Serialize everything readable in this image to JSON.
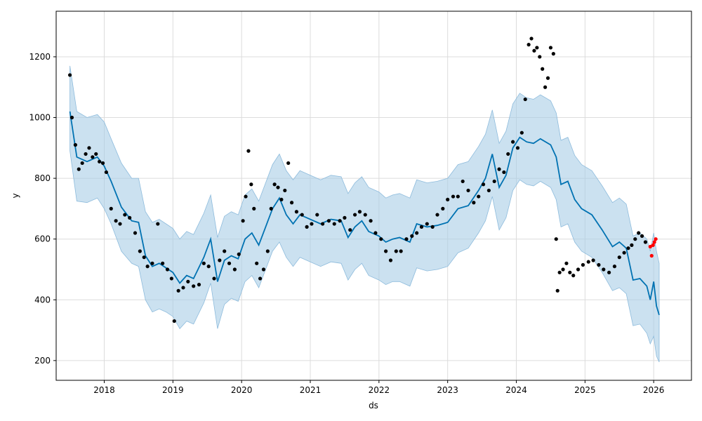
{
  "chart_data": {
    "type": "line",
    "xlabel": "ds",
    "ylabel": "y",
    "xlim": [
      2017.3,
      2026.55
    ],
    "ylim": [
      135,
      1350
    ],
    "x_ticks": [
      2018,
      2019,
      2020,
      2021,
      2022,
      2023,
      2024,
      2025,
      2026
    ],
    "x_tick_labels": [
      "2018",
      "2019",
      "2020",
      "2021",
      "2022",
      "2023",
      "2024",
      "2025",
      "2026"
    ],
    "y_ticks": [
      200,
      400,
      600,
      800,
      1000,
      1200
    ],
    "y_tick_labels": [
      "200",
      "400",
      "600",
      "800",
      "1000",
      "1200"
    ],
    "grid": true,
    "colors": {
      "band": "#a8cde6",
      "band_edge": "#8dbbdc",
      "forecast": "#0072b2",
      "observed": "#000000",
      "recent": "#ff0000",
      "grid": "#dcdcdc"
    },
    "series": [
      {
        "role": "forecast",
        "x": [
          2017.5,
          2017.6,
          2017.75,
          2017.9,
          2018.0,
          2018.1,
          2018.25,
          2018.4,
          2018.5,
          2018.6,
          2018.7,
          2018.8,
          2018.9,
          2019.0,
          2019.1,
          2019.2,
          2019.3,
          2019.45,
          2019.55,
          2019.65,
          2019.75,
          2019.85,
          2019.95,
          2020.05,
          2020.15,
          2020.25,
          2020.35,
          2020.45,
          2020.55,
          2020.65,
          2020.75,
          2020.85,
          2021.0,
          2021.15,
          2021.3,
          2021.45,
          2021.55,
          2021.65,
          2021.75,
          2021.85,
          2022.0,
          2022.1,
          2022.2,
          2022.3,
          2022.45,
          2022.55,
          2022.7,
          2022.85,
          2023.0,
          2023.15,
          2023.3,
          2023.45,
          2023.55,
          2023.65,
          2023.75,
          2023.85,
          2023.95,
          2024.05,
          2024.15,
          2024.25,
          2024.35,
          2024.5,
          2024.58,
          2024.65,
          2024.75,
          2024.85,
          2024.95,
          2025.1,
          2025.25,
          2025.4,
          2025.5,
          2025.6,
          2025.7,
          2025.8,
          2025.9,
          2025.95,
          2026.0,
          2026.04,
          2026.08
        ],
        "y": [
          1020,
          870,
          855,
          870,
          840,
          790,
          705,
          660,
          655,
          545,
          510,
          520,
          505,
          490,
          455,
          480,
          470,
          540,
          600,
          460,
          530,
          545,
          535,
          600,
          620,
          580,
          640,
          700,
          735,
          680,
          650,
          680,
          665,
          650,
          665,
          660,
          605,
          640,
          660,
          625,
          610,
          590,
          600,
          605,
          590,
          650,
          640,
          645,
          655,
          700,
          710,
          760,
          800,
          880,
          770,
          810,
          900,
          935,
          920,
          915,
          930,
          910,
          870,
          780,
          790,
          730,
          700,
          680,
          630,
          575,
          590,
          570,
          465,
          470,
          445,
          400,
          460,
          380,
          350
        ],
        "lower": [
          890,
          725,
          720,
          735,
          700,
          650,
          560,
          520,
          510,
          400,
          360,
          370,
          360,
          345,
          305,
          330,
          320,
          390,
          455,
          305,
          385,
          405,
          395,
          460,
          480,
          440,
          500,
          560,
          590,
          540,
          510,
          540,
          525,
          510,
          525,
          520,
          465,
          500,
          520,
          480,
          465,
          450,
          460,
          460,
          445,
          505,
          495,
          500,
          510,
          555,
          570,
          620,
          660,
          740,
          630,
          670,
          760,
          795,
          780,
          775,
          790,
          770,
          730,
          640,
          650,
          590,
          560,
          540,
          490,
          430,
          440,
          420,
          315,
          320,
          290,
          255,
          280,
          215,
          195
        ],
        "upper": [
          1170,
          1020,
          1000,
          1010,
          985,
          930,
          850,
          800,
          800,
          690,
          655,
          665,
          650,
          635,
          600,
          625,
          615,
          685,
          745,
          605,
          675,
          690,
          680,
          745,
          765,
          725,
          785,
          845,
          880,
          825,
          795,
          825,
          810,
          795,
          810,
          805,
          750,
          785,
          805,
          770,
          755,
          735,
          745,
          750,
          735,
          795,
          785,
          790,
          800,
          845,
          855,
          905,
          945,
          1025,
          915,
          955,
          1045,
          1080,
          1065,
          1060,
          1075,
          1055,
          1015,
          925,
          935,
          875,
          845,
          825,
          775,
          720,
          735,
          715,
          610,
          620,
          600,
          560,
          620,
          560,
          520
        ]
      },
      {
        "role": "observed",
        "x": [
          2017.5,
          2017.53,
          2017.58,
          2017.63,
          2017.68,
          2017.73,
          2017.78,
          2017.83,
          2017.88,
          2017.93,
          2017.98,
          2018.03,
          2018.1,
          2018.17,
          2018.23,
          2018.3,
          2018.37,
          2018.45,
          2018.52,
          2018.58,
          2018.63,
          2018.7,
          2018.78,
          2018.85,
          2018.92,
          2018.98,
          2019.02,
          2019.08,
          2019.15,
          2019.22,
          2019.3,
          2019.38,
          2019.45,
          2019.52,
          2019.6,
          2019.68,
          2019.75,
          2019.82,
          2019.9,
          2019.96,
          2020.02,
          2020.06,
          2020.1,
          2020.14,
          2020.18,
          2020.22,
          2020.27,
          2020.32,
          2020.38,
          2020.43,
          2020.48,
          2020.53,
          2020.58,
          2020.63,
          2020.68,
          2020.73,
          2020.8,
          2020.88,
          2020.95,
          2021.02,
          2021.1,
          2021.18,
          2021.27,
          2021.35,
          2021.43,
          2021.5,
          2021.58,
          2021.65,
          2021.72,
          2021.8,
          2021.88,
          2021.95,
          2022.03,
          2022.1,
          2022.17,
          2022.25,
          2022.32,
          2022.4,
          2022.48,
          2022.55,
          2022.62,
          2022.7,
          2022.78,
          2022.85,
          2022.93,
          2023.0,
          2023.08,
          2023.15,
          2023.22,
          2023.3,
          2023.38,
          2023.45,
          2023.52,
          2023.6,
          2023.68,
          2023.75,
          2023.82,
          2023.88,
          2023.95,
          2024.02,
          2024.08,
          2024.13,
          2024.18,
          2024.22,
          2024.26,
          2024.3,
          2024.34,
          2024.38,
          2024.42,
          2024.46,
          2024.5,
          2024.54,
          2024.58,
          2024.6,
          2024.63,
          2024.68,
          2024.73,
          2024.78,
          2024.83,
          2024.9,
          2024.97,
          2025.05,
          2025.12,
          2025.2,
          2025.27,
          2025.35,
          2025.43,
          2025.5,
          2025.57,
          2025.63,
          2025.68,
          2025.73,
          2025.78,
          2025.83,
          2025.88
        ],
        "y": [
          1140,
          1000,
          910,
          830,
          850,
          880,
          900,
          870,
          880,
          855,
          850,
          820,
          700,
          660,
          650,
          680,
          670,
          620,
          560,
          540,
          510,
          520,
          650,
          520,
          500,
          470,
          330,
          430,
          440,
          460,
          445,
          450,
          520,
          510,
          470,
          530,
          560,
          520,
          500,
          550,
          660,
          740,
          890,
          780,
          700,
          520,
          470,
          500,
          560,
          700,
          780,
          770,
          730,
          760,
          850,
          720,
          690,
          680,
          640,
          650,
          680,
          650,
          660,
          650,
          660,
          670,
          630,
          680,
          690,
          680,
          660,
          620,
          600,
          560,
          530,
          560,
          560,
          600,
          610,
          620,
          640,
          650,
          640,
          680,
          700,
          730,
          740,
          740,
          790,
          760,
          720,
          740,
          780,
          760,
          790,
          830,
          820,
          880,
          920,
          900,
          950,
          1060,
          1240,
          1260,
          1220,
          1230,
          1200,
          1160,
          1100,
          1130,
          1230,
          1210,
          600,
          430,
          490,
          500,
          520,
          490,
          480,
          500,
          515,
          525,
          530,
          515,
          500,
          490,
          510,
          540,
          555,
          570,
          580,
          600,
          620,
          610,
          590
        ],
        "note": ""
      },
      {
        "role": "recent",
        "x": [
          2025.95,
          2025.97,
          2025.99,
          2026.01,
          2026.03
        ],
        "y": [
          575,
          545,
          580,
          590,
          600
        ]
      }
    ]
  }
}
